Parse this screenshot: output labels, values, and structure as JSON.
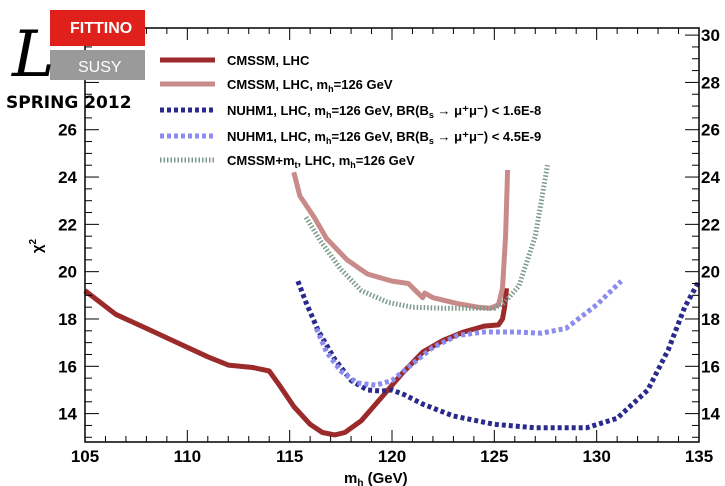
{
  "chart_data": {
    "type": "line",
    "title": "",
    "xlabel": "m_h (GeV)",
    "ylabel": "χ²",
    "xlim": [
      105,
      135
    ],
    "ylim": [
      12.8,
      30.3
    ],
    "x_ticks": [
      105,
      110,
      115,
      120,
      125,
      130,
      135
    ],
    "y_ticks_left": [
      14,
      16,
      18,
      20,
      22,
      24,
      26
    ],
    "y_ticks_right": [
      14,
      16,
      18,
      20,
      22,
      24,
      26,
      28,
      30
    ],
    "grid": false,
    "legend_position": "top-center",
    "series": [
      {
        "name": "CMSSM, LHC",
        "color": "#9b2a2a",
        "style": "solid",
        "points": [
          [
            105,
            19.2
          ],
          [
            106.5,
            18.2
          ],
          [
            108,
            17.6
          ],
          [
            109.5,
            17.0
          ],
          [
            111,
            16.4
          ],
          [
            112,
            16.05
          ],
          [
            113.2,
            15.95
          ],
          [
            114,
            15.8
          ],
          [
            114.5,
            15.2
          ],
          [
            115.2,
            14.3
          ],
          [
            116,
            13.55
          ],
          [
            116.6,
            13.2
          ],
          [
            117.2,
            13.1
          ],
          [
            117.7,
            13.2
          ],
          [
            118.5,
            13.7
          ],
          [
            119.5,
            14.7
          ],
          [
            120.5,
            15.7
          ],
          [
            121.5,
            16.6
          ],
          [
            122.5,
            17.1
          ],
          [
            123.5,
            17.45
          ],
          [
            124.5,
            17.7
          ],
          [
            125.2,
            17.75
          ],
          [
            125.4,
            18.0
          ],
          [
            125.5,
            18.5
          ],
          [
            125.6,
            19.3
          ]
        ]
      },
      {
        "name": "CMSSM, LHC, m_h=126 GeV",
        "color": "#c98a8a",
        "style": "solid",
        "points": [
          [
            115.2,
            24.2
          ],
          [
            115.5,
            23.2
          ],
          [
            116.2,
            22.3
          ],
          [
            116.8,
            21.4
          ],
          [
            117.8,
            20.5
          ],
          [
            118.8,
            19.9
          ],
          [
            120,
            19.6
          ],
          [
            120.8,
            19.5
          ],
          [
            121.5,
            18.9
          ],
          [
            121.6,
            19.1
          ],
          [
            122,
            18.9
          ],
          [
            123.2,
            18.65
          ],
          [
            124.2,
            18.5
          ],
          [
            124.8,
            18.45
          ],
          [
            125.2,
            18.6
          ],
          [
            125.4,
            19.3
          ],
          [
            125.55,
            21.5
          ],
          [
            125.65,
            24.3
          ]
        ]
      },
      {
        "name": "NUHM1, LHC, m_h=126 GeV, BR(B_s → μ⁺μ⁻) < 1.6E-8",
        "color": "#2a2a8c",
        "style": "dashed",
        "points": [
          [
            115.4,
            19.6
          ],
          [
            115.8,
            18.7
          ],
          [
            116.4,
            17.5
          ],
          [
            117.2,
            16.3
          ],
          [
            118,
            15.4
          ],
          [
            118.8,
            15.0
          ],
          [
            119.5,
            14.95
          ],
          [
            120,
            15.0
          ],
          [
            120.6,
            14.8
          ],
          [
            121.5,
            14.4
          ],
          [
            123,
            13.9
          ],
          [
            125,
            13.55
          ],
          [
            127,
            13.4
          ],
          [
            129.5,
            13.4
          ],
          [
            131,
            13.8
          ],
          [
            132.5,
            15.0
          ],
          [
            133.5,
            16.7
          ],
          [
            134.3,
            18.5
          ],
          [
            135,
            19.6
          ]
        ]
      },
      {
        "name": "NUHM1, LHC, m_h=126 GeV, BR(B_s → μ⁺μ⁻) < 4.5E-9",
        "color": "#8c8cf0",
        "style": "dashed",
        "points": [
          [
            116.3,
            17.6
          ],
          [
            116.8,
            16.6
          ],
          [
            117.5,
            15.8
          ],
          [
            118.3,
            15.3
          ],
          [
            119.2,
            15.2
          ],
          [
            120,
            15.4
          ],
          [
            121,
            16.1
          ],
          [
            122,
            16.8
          ],
          [
            123.2,
            17.3
          ],
          [
            124.5,
            17.45
          ],
          [
            126,
            17.45
          ],
          [
            127.3,
            17.4
          ],
          [
            128.5,
            17.6
          ],
          [
            130,
            18.6
          ],
          [
            131.2,
            19.6
          ]
        ]
      },
      {
        "name": "CMSSM+m_t, LHC, m_h=126 GeV",
        "color": "#7a9a8a",
        "style": "dotted",
        "points": [
          [
            115.8,
            22.3
          ],
          [
            116.5,
            21.3
          ],
          [
            117.5,
            20.1
          ],
          [
            118.5,
            19.2
          ],
          [
            119.8,
            18.7
          ],
          [
            121,
            18.5
          ],
          [
            122.5,
            18.45
          ],
          [
            124,
            18.45
          ],
          [
            125,
            18.45
          ],
          [
            125.5,
            18.7
          ],
          [
            126.2,
            19.4
          ],
          [
            127,
            21.5
          ],
          [
            127.6,
            24.5
          ]
        ]
      }
    ]
  },
  "legend": {
    "items": [
      {
        "main": "CMSSM, LHC"
      },
      {
        "main": "CMSSM, LHC, m",
        "sub": "h",
        "rest": "=126 GeV"
      },
      {
        "main": "NUHM1, LHC, m",
        "sub": "h",
        "rest": "=126 GeV, BR(B",
        "sub2": "s",
        "rest2": " → μ⁺μ⁻) < 1.6E-8"
      },
      {
        "main": "NUHM1, LHC, m",
        "sub": "h",
        "rest": "=126 GeV, BR(B",
        "sub2": "s",
        "rest2": " → μ⁺μ⁻) < 4.5E-9"
      },
      {
        "main": "CMSSM+m",
        "sub": "t",
        "rest": ", LHC, m",
        "sub2": "h",
        "rest2": "=126 GeV"
      }
    ]
  },
  "logo": {
    "top_text": "FITTINO",
    "bottom_text": "SUSY",
    "big_letter": "L",
    "caption": "SPRING 2012",
    "colors": {
      "top": "#e0201b",
      "bottom": "#9a9a9a"
    }
  },
  "axes": {
    "x_title_main": "m",
    "x_title_sub": "h",
    "x_title_rest": " (GeV)",
    "y_title_main": "χ",
    "y_title_sup": "2"
  }
}
